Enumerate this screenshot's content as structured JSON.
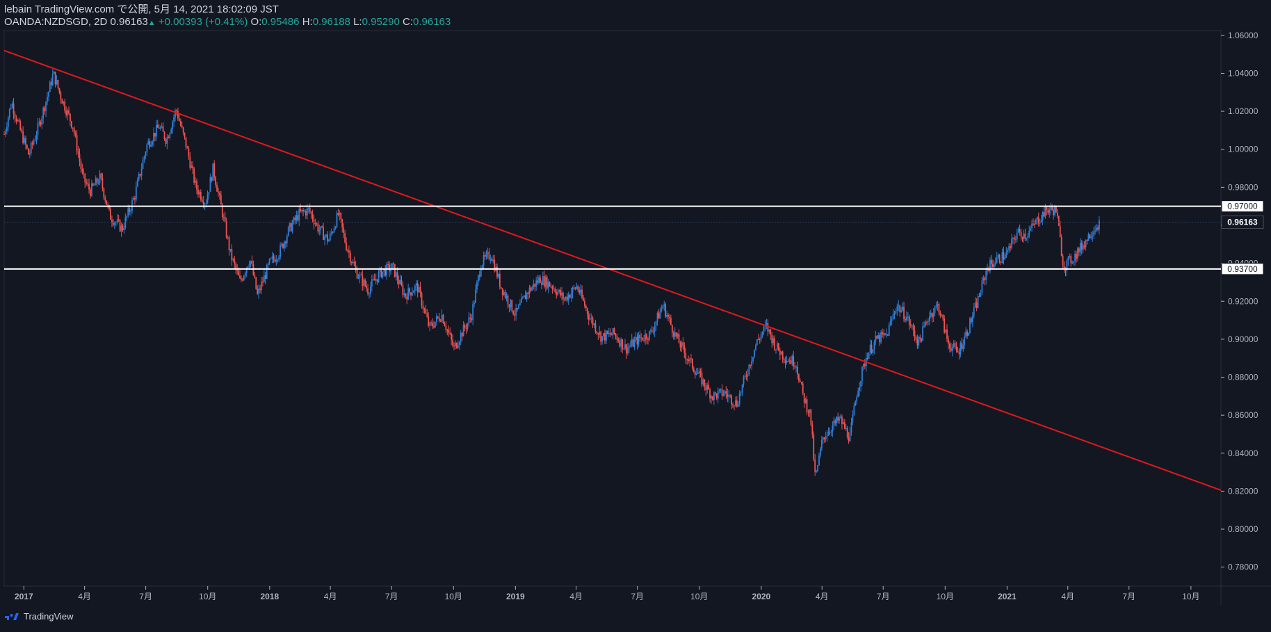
{
  "header": {
    "publish_line": "lebain TradingView.com で公開, 5月 14, 2021 18:02:09 JST",
    "symbol": "OANDA:NZDSGD, 2D",
    "last": "0.96163",
    "change_arrow": "▲",
    "change": "+0.00393 (+0.41%)",
    "o_label": "O:",
    "o_val": "0.95486",
    "h_label": "H:",
    "h_val": "0.96188",
    "l_label": "L:",
    "l_val": "0.95290",
    "c_label": "C:",
    "c_val": "0.96163"
  },
  "footer": {
    "brand": "TradingView",
    "logo_icon": "tradingview-logo-icon"
  },
  "colors": {
    "background": "#131722",
    "up": "#2f7fd6",
    "down": "#ef5350",
    "trendline": "#e0191c",
    "level_line": "#ffffff",
    "axis_text": "#b2b5be"
  },
  "chart_data": {
    "type": "candlestick",
    "title": "OANDA:NZDSGD, 2D",
    "ylim": [
      0.77,
      1.0625
    ],
    "xlim": [
      2016.92,
      2021.87
    ],
    "y_ticks": [
      "0.78000",
      "0.80000",
      "0.82000",
      "0.84000",
      "0.86000",
      "0.88000",
      "0.90000",
      "0.92000",
      "0.94000",
      "0.96000",
      "0.98000",
      "1.00000",
      "1.02000",
      "1.04000",
      "1.06000"
    ],
    "x_ticks": [
      {
        "t": 2017.0,
        "label": "2017"
      },
      {
        "t": 2017.247,
        "label": "4月"
      },
      {
        "t": 2017.496,
        "label": "7月"
      },
      {
        "t": 2017.748,
        "label": "10月"
      },
      {
        "t": 2018.0,
        "label": "2018"
      },
      {
        "t": 2018.247,
        "label": "4月"
      },
      {
        "t": 2018.496,
        "label": "7月"
      },
      {
        "t": 2018.748,
        "label": "10月"
      },
      {
        "t": 2019.0,
        "label": "2019"
      },
      {
        "t": 2019.247,
        "label": "4月"
      },
      {
        "t": 2019.496,
        "label": "7月"
      },
      {
        "t": 2019.748,
        "label": "10月"
      },
      {
        "t": 2020.0,
        "label": "2020"
      },
      {
        "t": 2020.247,
        "label": "4月"
      },
      {
        "t": 2020.496,
        "label": "7月"
      },
      {
        "t": 2020.748,
        "label": "10月"
      },
      {
        "t": 2021.0,
        "label": "2021"
      },
      {
        "t": 2021.247,
        "label": "4月"
      },
      {
        "t": 2021.496,
        "label": "7月"
      },
      {
        "t": 2021.748,
        "label": "10月"
      }
    ],
    "price_path": [
      [
        2016.92,
        1.008
      ],
      [
        2016.95,
        1.025
      ],
      [
        2016.98,
        1.012
      ],
      [
        2017.02,
        0.997
      ],
      [
        2017.06,
        1.012
      ],
      [
        2017.1,
        1.03
      ],
      [
        2017.12,
        1.04
      ],
      [
        2017.15,
        1.028
      ],
      [
        2017.2,
        1.012
      ],
      [
        2017.24,
        0.985
      ],
      [
        2017.27,
        0.978
      ],
      [
        2017.31,
        0.985
      ],
      [
        2017.35,
        0.965
      ],
      [
        2017.4,
        0.958
      ],
      [
        2017.45,
        0.975
      ],
      [
        2017.5,
        1.002
      ],
      [
        2017.55,
        1.012
      ],
      [
        2017.58,
        1.005
      ],
      [
        2017.62,
        1.021
      ],
      [
        2017.66,
        1.002
      ],
      [
        2017.7,
        0.98
      ],
      [
        2017.74,
        0.972
      ],
      [
        2017.77,
        0.99
      ],
      [
        2017.81,
        0.965
      ],
      [
        2017.84,
        0.945
      ],
      [
        2017.88,
        0.93
      ],
      [
        2017.92,
        0.943
      ],
      [
        2017.95,
        0.923
      ],
      [
        2018.0,
        0.94
      ],
      [
        2018.04,
        0.946
      ],
      [
        2018.08,
        0.958
      ],
      [
        2018.12,
        0.966
      ],
      [
        2018.16,
        0.968
      ],
      [
        2018.2,
        0.958
      ],
      [
        2018.24,
        0.952
      ],
      [
        2018.28,
        0.966
      ],
      [
        2018.31,
        0.95
      ],
      [
        2018.35,
        0.936
      ],
      [
        2018.4,
        0.926
      ],
      [
        2018.45,
        0.935
      ],
      [
        2018.5,
        0.938
      ],
      [
        2018.55,
        0.923
      ],
      [
        2018.6,
        0.928
      ],
      [
        2018.65,
        0.906
      ],
      [
        2018.7,
        0.913
      ],
      [
        2018.75,
        0.895
      ],
      [
        2018.78,
        0.903
      ],
      [
        2018.82,
        0.912
      ],
      [
        2018.86,
        0.94
      ],
      [
        2018.9,
        0.945
      ],
      [
        2018.94,
        0.928
      ],
      [
        2019.0,
        0.913
      ],
      [
        2019.05,
        0.925
      ],
      [
        2019.1,
        0.932
      ],
      [
        2019.15,
        0.928
      ],
      [
        2019.2,
        0.921
      ],
      [
        2019.25,
        0.928
      ],
      [
        2019.3,
        0.912
      ],
      [
        2019.35,
        0.901
      ],
      [
        2019.4,
        0.903
      ],
      [
        2019.45,
        0.895
      ],
      [
        2019.5,
        0.9
      ],
      [
        2019.55,
        0.903
      ],
      [
        2019.6,
        0.918
      ],
      [
        2019.65,
        0.902
      ],
      [
        2019.7,
        0.89
      ],
      [
        2019.75,
        0.88
      ],
      [
        2019.8,
        0.87
      ],
      [
        2019.85,
        0.872
      ],
      [
        2019.9,
        0.866
      ],
      [
        2019.94,
        0.882
      ],
      [
        2019.98,
        0.898
      ],
      [
        2020.02,
        0.907
      ],
      [
        2020.06,
        0.896
      ],
      [
        2020.1,
        0.89
      ],
      [
        2020.14,
        0.888
      ],
      [
        2020.17,
        0.87
      ],
      [
        2020.2,
        0.86
      ],
      [
        2020.22,
        0.826
      ],
      [
        2020.25,
        0.848
      ],
      [
        2020.28,
        0.853
      ],
      [
        2020.32,
        0.858
      ],
      [
        2020.36,
        0.848
      ],
      [
        2020.39,
        0.873
      ],
      [
        2020.43,
        0.892
      ],
      [
        2020.47,
        0.9
      ],
      [
        2020.51,
        0.902
      ],
      [
        2020.55,
        0.918
      ],
      [
        2020.59,
        0.912
      ],
      [
        2020.64,
        0.898
      ],
      [
        2020.68,
        0.912
      ],
      [
        2020.72,
        0.918
      ],
      [
        2020.76,
        0.898
      ],
      [
        2020.8,
        0.893
      ],
      [
        2020.84,
        0.905
      ],
      [
        2020.88,
        0.92
      ],
      [
        2020.92,
        0.938
      ],
      [
        2020.96,
        0.942
      ],
      [
        2021.0,
        0.945
      ],
      [
        2021.04,
        0.956
      ],
      [
        2021.08,
        0.955
      ],
      [
        2021.12,
        0.962
      ],
      [
        2021.16,
        0.968
      ],
      [
        2021.2,
        0.968
      ],
      [
        2021.23,
        0.938
      ],
      [
        2021.27,
        0.943
      ],
      [
        2021.31,
        0.95
      ],
      [
        2021.35,
        0.958
      ],
      [
        2021.38,
        0.962
      ]
    ],
    "horizontal_levels": [
      {
        "value": 0.97,
        "label": "0.97000"
      },
      {
        "value": 0.937,
        "label": "0.93700"
      }
    ],
    "current_price": {
      "value": 0.96163,
      "label": "0.96163"
    },
    "trendline": {
      "from": [
        2016.92,
        1.052
      ],
      "to": [
        2021.87,
        0.8205
      ]
    }
  }
}
